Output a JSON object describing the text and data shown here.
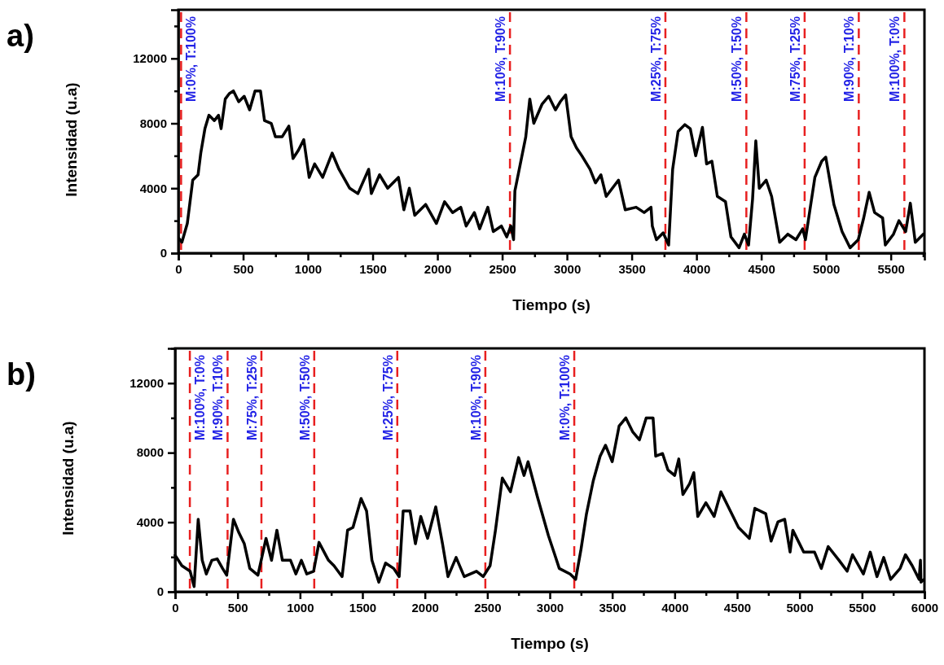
{
  "chart_data": [
    {
      "type": "line",
      "title": "a)",
      "xlabel": "Tiempo (s)",
      "ylabel": "Intensidad (u.a)",
      "xlim": [
        0,
        5760
      ],
      "ylim": [
        0,
        15000
      ],
      "xticks": [
        0,
        {
          "value": 250,
          "label": null
        },
        500,
        {
          "value": 750,
          "label": null
        },
        1000,
        {
          "value": 1250,
          "label": null
        },
        1500,
        {
          "value": 1750,
          "label": null
        },
        2000,
        {
          "value": 2250,
          "label": null
        },
        2500,
        {
          "value": 2750,
          "label": null
        },
        3000,
        {
          "value": 3250,
          "label": null
        },
        3500,
        {
          "value": 3750,
          "label": null
        },
        4000,
        {
          "value": 4250,
          "label": null
        },
        4500,
        {
          "value": 4750,
          "label": null
        },
        5000,
        {
          "value": 5250,
          "label": null
        },
        5500,
        {
          "value": 5750,
          "label": null
        }
      ],
      "yticks": [
        0,
        {
          "value": 2000,
          "label": null
        },
        4000,
        {
          "value": 6000,
          "label": null
        },
        8000,
        {
          "value": 10000,
          "label": null
        },
        12000,
        {
          "value": 14000,
          "label": null
        }
      ],
      "line_style": "solid",
      "series": [
        {
          "color": "#000000",
          "x": [
            5,
            27,
            69,
            111,
            152,
            173,
            205,
            236,
            278,
            310,
            330,
            362,
            393,
            425,
            466,
            508,
            550,
            592,
            634,
            665,
            717,
            749,
            801,
            853,
            885,
            926,
            968,
            1010,
            1052,
            1114,
            1187,
            1240,
            1323,
            1386,
            1469,
            1490,
            1553,
            1616,
            1699,
            1741,
            1783,
            1825,
            1909,
            1992,
            2055,
            2117,
            2180,
            2222,
            2285,
            2326,
            2389,
            2431,
            2494,
            2535,
            2567,
            2588,
            2598,
            2640,
            2682,
            2713,
            2744,
            2807,
            2859,
            2911,
            2948,
            2990,
            3032,
            3073,
            3115,
            3178,
            3220,
            3262,
            3303,
            3398,
            3450,
            3534,
            3596,
            3649,
            3659,
            3691,
            3743,
            3785,
            3816,
            3858,
            3910,
            3952,
            3994,
            4046,
            4078,
            4119,
            4161,
            4224,
            4266,
            4329,
            4370,
            4402,
            4433,
            4458,
            4485,
            4538,
            4580,
            4642,
            4705,
            4768,
            4820,
            4841,
            4914,
            4967,
            4998,
            5061,
            5124,
            5186,
            5249,
            5291,
            5333,
            5375,
            5437,
            5458,
            5521,
            5563,
            5615,
            5651,
            5689,
            5751
          ],
          "values": [
            900,
            670,
            1830,
            4500,
            4830,
            6170,
            7670,
            8500,
            8170,
            8500,
            7670,
            9500,
            9830,
            10000,
            9330,
            9670,
            8830,
            10000,
            10000,
            8170,
            8000,
            7170,
            7170,
            7830,
            5830,
            6330,
            7000,
            4670,
            5500,
            4670,
            6170,
            5170,
            4000,
            3670,
            5170,
            3670,
            4830,
            4000,
            4670,
            2670,
            4000,
            2330,
            3000,
            1830,
            3170,
            2500,
            2830,
            1670,
            2500,
            1500,
            2830,
            1330,
            1670,
            1000,
            1670,
            830,
            3830,
            5500,
            7170,
            9500,
            8000,
            9170,
            9670,
            8830,
            9330,
            9750,
            7170,
            6500,
            6000,
            5170,
            4330,
            4830,
            3500,
            4500,
            2670,
            2830,
            2500,
            2830,
            1670,
            830,
            1250,
            500,
            5170,
            7500,
            7920,
            7670,
            6000,
            7750,
            5500,
            5670,
            3500,
            3170,
            1000,
            330,
            1170,
            500,
            3330,
            6920,
            4000,
            4500,
            3500,
            670,
            1170,
            830,
            1500,
            830,
            4670,
            5670,
            5920,
            3000,
            1330,
            330,
            830,
            2170,
            3750,
            2500,
            2170,
            500,
            1170,
            2000,
            1330,
            3080,
            670,
            1170
          ]
        }
      ],
      "ref_lines": [
        {
          "axis": "x",
          "value": 21,
          "color": "#e82020",
          "line_style": "dashed"
        },
        {
          "axis": "x",
          "value": 2560,
          "color": "#e82020",
          "line_style": "dashed"
        },
        {
          "axis": "x",
          "value": 3760,
          "color": "#e82020",
          "line_style": "dashed"
        },
        {
          "axis": "x",
          "value": 4385,
          "color": "#e82020",
          "line_style": "dashed"
        },
        {
          "axis": "x",
          "value": 4835,
          "color": "#e82020",
          "line_style": "dashed"
        },
        {
          "axis": "x",
          "value": 5253,
          "color": "#e82020",
          "line_style": "dashed"
        },
        {
          "axis": "x",
          "value": 5605,
          "color": "#e82020",
          "line_style": "dashed"
        }
      ],
      "annotations": [
        "M:0%, T:100%",
        "M:10%, T:90%",
        "M:25%, T:75%",
        "M:50%, T:50%",
        "M:75%, T:25%",
        "M:90%, T:10%",
        "M:100%, T:0%"
      ]
    },
    {
      "type": "line",
      "title": "b)",
      "xlabel": "Tiempo (s)",
      "ylabel": "Intensidad (u.a)",
      "xlim": [
        0,
        6000
      ],
      "ylim": [
        0,
        14000
      ],
      "xticks": [
        0,
        {
          "value": 250,
          "label": null
        },
        500,
        {
          "value": 750,
          "label": null
        },
        1000,
        {
          "value": 1250,
          "label": null
        },
        1500,
        {
          "value": 1750,
          "label": null
        },
        2000,
        {
          "value": 2250,
          "label": null
        },
        2500,
        {
          "value": 2750,
          "label": null
        },
        3000,
        {
          "value": 3250,
          "label": null
        },
        3500,
        {
          "value": 3750,
          "label": null
        },
        4000,
        {
          "value": 4250,
          "label": null
        },
        4500,
        {
          "value": 4750,
          "label": null
        },
        5000,
        {
          "value": 5250,
          "label": null
        },
        5500,
        {
          "value": 5750,
          "label": null
        },
        6000
      ],
      "yticks": [
        0,
        {
          "value": 2000,
          "label": null
        },
        4000,
        {
          "value": 6000,
          "label": null
        },
        8000,
        {
          "value": 10000,
          "label": null
        },
        12000,
        {
          "value": 14000,
          "label": null
        }
      ],
      "line_style": "solid",
      "series": [
        {
          "color": "#000000",
          "x": [
            0,
            54,
            120,
            152,
            185,
            217,
            250,
            294,
            337,
            380,
            413,
            467,
            511,
            554,
            598,
            663,
            728,
            772,
            815,
            859,
            924,
            967,
            1011,
            1054,
            1109,
            1152,
            1228,
            1272,
            1337,
            1381,
            1424,
            1489,
            1533,
            1576,
            1631,
            1685,
            1750,
            1794,
            1826,
            1881,
            1924,
            1967,
            2022,
            2087,
            2141,
            2185,
            2250,
            2315,
            2413,
            2467,
            2522,
            2565,
            2620,
            2685,
            2750,
            2794,
            2826,
            2902,
            2989,
            3033,
            3076,
            3163,
            3207,
            3250,
            3294,
            3348,
            3403,
            3446,
            3500,
            3555,
            3609,
            3663,
            3718,
            3772,
            3827,
            3848,
            3903,
            3946,
            4000,
            4033,
            4066,
            4120,
            4153,
            4185,
            4250,
            4316,
            4370,
            4424,
            4511,
            4598,
            4642,
            4729,
            4772,
            4827,
            4881,
            4924,
            4946,
            5033,
            5120,
            5174,
            5229,
            5316,
            5381,
            5424,
            5511,
            5566,
            5620,
            5674,
            5729,
            5805,
            5848,
            5902,
            5957,
            5968,
            5972,
            5995
          ],
          "values": [
            2100,
            1500,
            1180,
            300,
            4170,
            1810,
            1020,
            1810,
            1890,
            1340,
            950,
            4170,
            3390,
            2760,
            1340,
            950,
            3070,
            1810,
            3540,
            1810,
            1810,
            1020,
            1810,
            1020,
            1180,
            2840,
            1810,
            1500,
            870,
            3540,
            3700,
            5360,
            4650,
            1810,
            550,
            1650,
            1340,
            870,
            4650,
            4650,
            2760,
            4330,
            3070,
            4880,
            2760,
            870,
            1970,
            870,
            1180,
            870,
            1500,
            3540,
            6540,
            5750,
            7720,
            6690,
            7480,
            5430,
            3230,
            2280,
            1340,
            1020,
            710,
            2440,
            4490,
            6380,
            7800,
            8430,
            7480,
            9530,
            10000,
            9210,
            8740,
            10000,
            10000,
            7800,
            7950,
            7010,
            6690,
            7640,
            5590,
            6220,
            6850,
            4330,
            5120,
            4330,
            5750,
            4960,
            3700,
            3070,
            4800,
            4490,
            2910,
            4020,
            4170,
            2280,
            3540,
            2280,
            2280,
            1340,
            2600,
            1810,
            1180,
            2130,
            1020,
            2280,
            870,
            1970,
            710,
            1340,
            2130,
            1500,
            710,
            1810,
            550,
            700
          ]
        }
      ],
      "ref_lines": [
        {
          "axis": "x",
          "value": 118,
          "color": "#e82020",
          "line_style": "dashed"
        },
        {
          "axis": "x",
          "value": 420,
          "color": "#e82020",
          "line_style": "dashed"
        },
        {
          "axis": "x",
          "value": 691,
          "color": "#e82020",
          "line_style": "dashed"
        },
        {
          "axis": "x",
          "value": 1114,
          "color": "#e82020",
          "line_style": "dashed"
        },
        {
          "axis": "x",
          "value": 1779,
          "color": "#e82020",
          "line_style": "dashed"
        },
        {
          "axis": "x",
          "value": 2484,
          "color": "#e82020",
          "line_style": "dashed"
        },
        {
          "axis": "x",
          "value": 3196,
          "color": "#e82020",
          "line_style": "dashed"
        }
      ],
      "annotations": [
        "M:100%, T:0%",
        "M:90%, T:10%",
        "M:75%, T:25%",
        "M:50%, T:50%",
        "M:25%, T:75%",
        "M:10%, T:90%",
        "M:0%, T:100%"
      ]
    }
  ]
}
